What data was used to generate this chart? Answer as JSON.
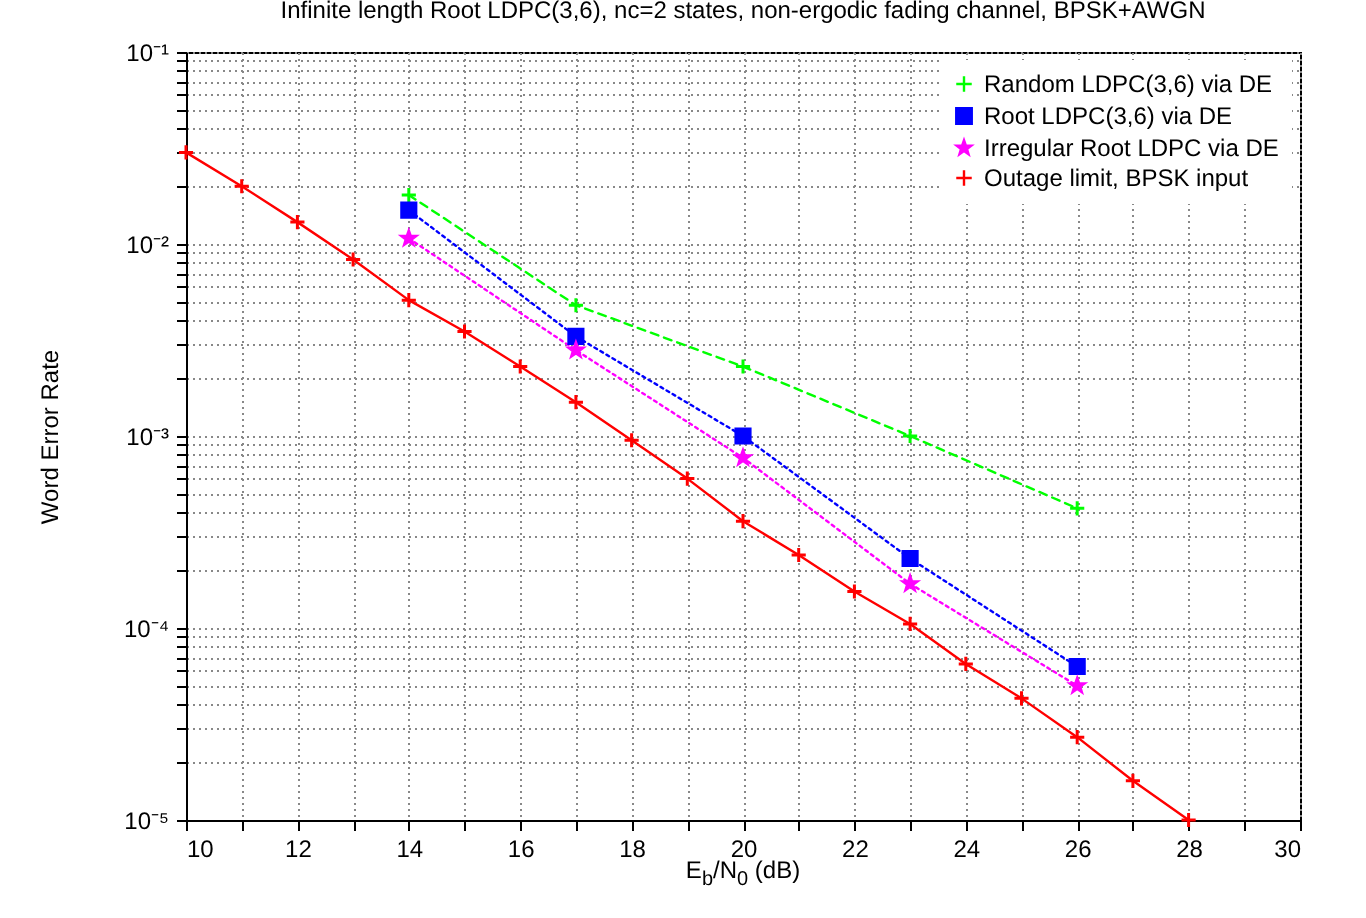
{
  "chart_data": {
    "type": "line",
    "title": "Infinite length Root LDPC(3,6), nc=2 states, non-ergodic fading channel, BPSK+AWGN",
    "xlabel": "E$_{b}$/N$_{0}$ (dB)",
    "ylabel": "Word Error Rate",
    "log": "y",
    "grid": true,
    "legend": "top right",
    "xlim": [
      10,
      30
    ],
    "ylim": [
      1e-05,
      0.1
    ],
    "xticks": [
      10,
      {
        "value": 11,
        "label": null
      },
      12,
      {
        "value": 13,
        "label": null
      },
      14,
      {
        "value": 15,
        "label": null
      },
      16,
      {
        "value": 17,
        "label": null
      },
      18,
      {
        "value": 19,
        "label": null
      },
      20,
      {
        "value": 21,
        "label": null
      },
      22,
      {
        "value": 23,
        "label": null
      },
      24,
      {
        "value": 25,
        "label": null
      },
      26,
      {
        "value": 27,
        "label": null
      },
      28,
      {
        "value": 29,
        "label": null
      },
      30
    ],
    "yticks": [
      {
        "value": 1e-05,
        "label": "10⁻⁵"
      },
      {
        "value": 2e-05,
        "label": null
      },
      {
        "value": 3e-05,
        "label": null
      },
      {
        "value": 4e-05,
        "label": null
      },
      {
        "value": 5e-05,
        "label": null
      },
      {
        "value": 6e-05,
        "label": null
      },
      {
        "value": 7e-05,
        "label": null
      },
      {
        "value": 8e-05,
        "label": null
      },
      {
        "value": 9e-05,
        "label": null
      },
      {
        "value": 0.0001,
        "label": "10⁻⁴"
      },
      {
        "value": 0.0002,
        "label": null
      },
      {
        "value": 0.0003,
        "label": null
      },
      {
        "value": 0.0004,
        "label": null
      },
      {
        "value": 0.0005,
        "label": null
      },
      {
        "value": 0.0006,
        "label": null
      },
      {
        "value": 0.0007,
        "label": null
      },
      {
        "value": 0.0008,
        "label": null
      },
      {
        "value": 0.0009,
        "label": null
      },
      {
        "value": 0.001,
        "label": "10⁻³"
      },
      {
        "value": 0.002,
        "label": null
      },
      {
        "value": 0.003,
        "label": null
      },
      {
        "value": 0.004,
        "label": null
      },
      {
        "value": 0.005,
        "label": null
      },
      {
        "value": 0.006,
        "label": null
      },
      {
        "value": 0.007,
        "label": null
      },
      {
        "value": 0.008,
        "label": null
      },
      {
        "value": 0.009,
        "label": null
      },
      {
        "value": 0.01,
        "label": "10⁻²"
      },
      {
        "value": 0.02,
        "label": null
      },
      {
        "value": 0.03,
        "label": null
      },
      {
        "value": 0.04,
        "label": null
      },
      {
        "value": 0.05,
        "label": null
      },
      {
        "value": 0.06,
        "label": null
      },
      {
        "value": 0.07,
        "label": null
      },
      {
        "value": 0.08,
        "label": null
      },
      {
        "value": 0.09,
        "label": null
      },
      {
        "value": 0.1,
        "label": "10⁻¹"
      }
    ],
    "series": [
      {
        "name": "Random LDPC(3,6) via DE",
        "color": "#00ff00",
        "marker": "cross",
        "line_style": "dashed",
        "x": [
          14,
          17,
          20,
          23,
          26
        ],
        "values": [
          0.018,
          0.0048,
          0.0023,
          0.001,
          0.00042
        ]
      },
      {
        "name": "Root LDPC(3,6) via DE",
        "color": "#0000ff",
        "marker": "square",
        "line_style": "dotted",
        "x": [
          14,
          17,
          20,
          23,
          26
        ],
        "values": [
          0.015,
          0.0033,
          0.001,
          0.00023,
          6.3e-05
        ]
      },
      {
        "name": "Irregular Root LDPC via DE",
        "color": "#ff00ff",
        "marker": "star",
        "line_style": "dotted",
        "x": [
          14,
          17,
          20,
          23,
          26
        ],
        "values": [
          0.0107,
          0.0028,
          0.00077,
          0.00017,
          5e-05
        ]
      },
      {
        "name": "Outage limit, BPSK input",
        "color": "#ff0000",
        "marker": "cross",
        "line_style": "solid",
        "x": [
          10,
          11,
          12,
          13,
          14,
          15,
          16,
          17,
          18,
          19,
          20,
          21,
          22,
          23,
          24,
          25,
          26,
          27,
          28
        ],
        "values": [
          0.03,
          0.02,
          0.013,
          0.0083,
          0.0051,
          0.0035,
          0.0023,
          0.0015,
          0.00095,
          0.0006,
          0.00036,
          0.00024,
          0.000155,
          0.000105,
          6.5e-05,
          4.3e-05,
          2.7e-05,
          1.6e-05,
          1e-05
        ]
      }
    ]
  }
}
